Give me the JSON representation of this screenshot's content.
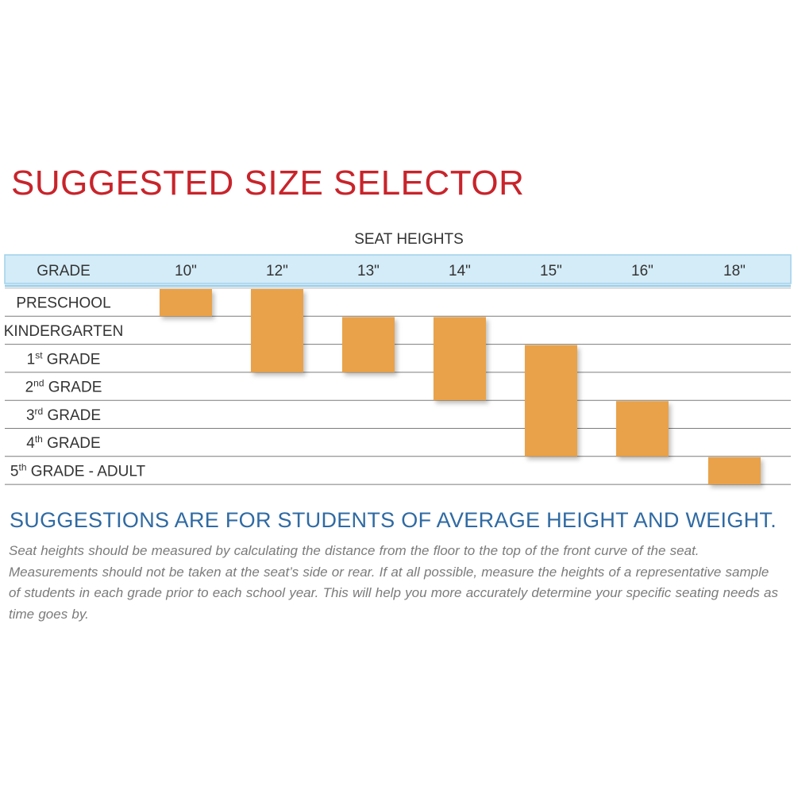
{
  "title": "SUGGESTED SIZE SELECTOR",
  "chart_data": {
    "type": "gantt",
    "column_group_label": "SEAT HEIGHTS",
    "row_header": "GRADE",
    "categories": [
      "10\"",
      "12\"",
      "13\"",
      "14\"",
      "15\"",
      "16\"",
      "18\""
    ],
    "rows": [
      {
        "name": "PRESCHOOL",
        "base": "PRESCHOOL",
        "sup": ""
      },
      {
        "name": "KINDERGARTEN",
        "base": "KINDERGARTEN",
        "sup": ""
      },
      {
        "name": "1st GRADE",
        "base": "1",
        "sup": "st",
        "rest": " GRADE"
      },
      {
        "name": "2nd GRADE",
        "base": "2",
        "sup": "nd",
        "rest": " GRADE"
      },
      {
        "name": "3rd GRADE",
        "base": "3",
        "sup": "rd",
        "rest": " GRADE"
      },
      {
        "name": "4th GRADE",
        "base": "4",
        "sup": "th",
        "rest": " GRADE"
      },
      {
        "name": "5th GRADE - ADULT",
        "base": "5",
        "sup": "th",
        "rest": " GRADE - ADULT"
      }
    ],
    "bars": [
      {
        "seat_height": "10\"",
        "from_row": 0,
        "to_row": 0
      },
      {
        "seat_height": "12\"",
        "from_row": 0,
        "to_row": 2
      },
      {
        "seat_height": "13\"",
        "from_row": 1,
        "to_row": 2
      },
      {
        "seat_height": "14\"",
        "from_row": 1,
        "to_row": 3
      },
      {
        "seat_height": "15\"",
        "from_row": 2,
        "to_row": 5
      },
      {
        "seat_height": "16\"",
        "from_row": 4,
        "to_row": 5
      },
      {
        "seat_height": "18\"",
        "from_row": 6,
        "to_row": 6
      }
    ],
    "colors": {
      "bar": "#e9a24a",
      "header_band": "#d4ecf8",
      "header_border": "#9fd0ea",
      "row_line": "#7c7c7c",
      "text": "#333333"
    }
  },
  "headline": "SUGGESTIONS ARE FOR STUDENTS OF AVERAGE HEIGHT AND WEIGHT.",
  "note": "Seat heights should be measured by calculating the distance from the floor to the top of the front curve of the seat. Measurements should not be taken at the seat’s side or rear.  If at all possible, measure the heights of a representative sample of students in each grade prior to each school year.  This will help you more accurately determine your specific seating needs as time goes by."
}
